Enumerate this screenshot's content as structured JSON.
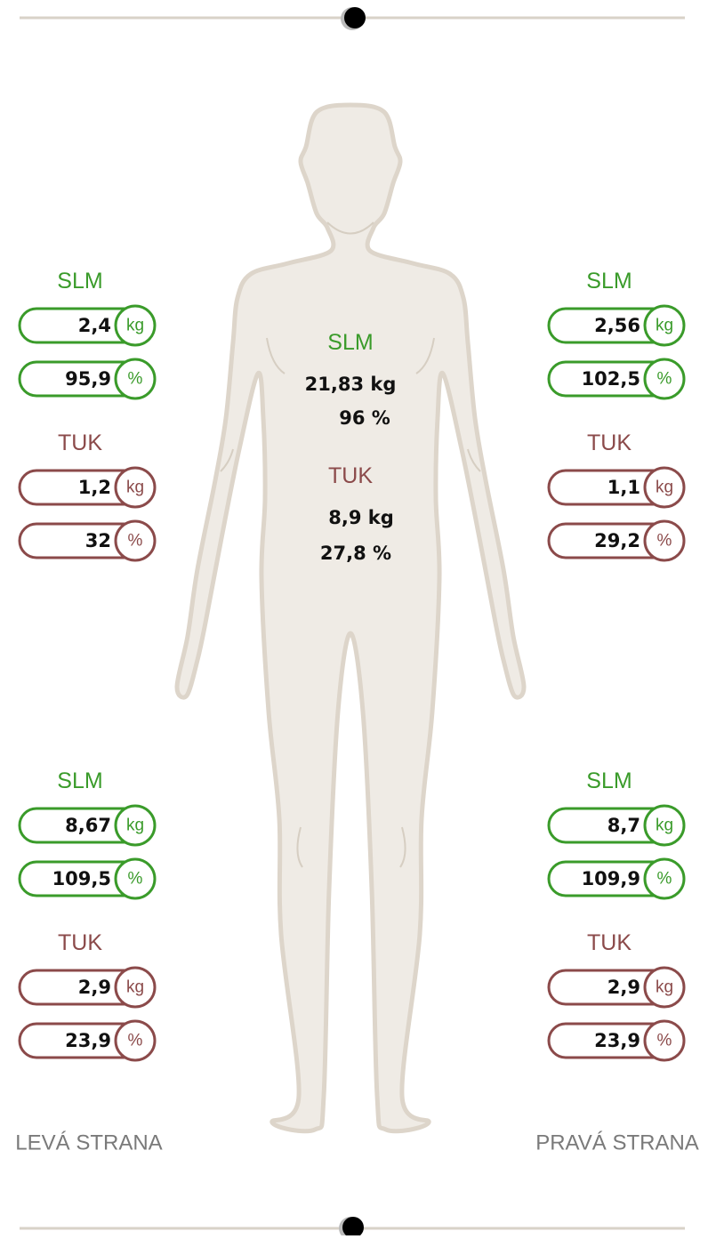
{
  "left_arm": {
    "slm": {
      "label": "SLM",
      "kg": "2,4",
      "kg_unit": "kg",
      "pct": "95,9",
      "pct_unit": "%"
    },
    "tuk": {
      "label": "TUK",
      "kg": "1,2",
      "kg_unit": "kg",
      "pct": "32",
      "pct_unit": "%"
    }
  },
  "right_arm": {
    "slm": {
      "label": "SLM",
      "kg": "2,56",
      "kg_unit": "kg",
      "pct": "102,5",
      "pct_unit": "%"
    },
    "tuk": {
      "label": "TUK",
      "kg": "1,1",
      "kg_unit": "kg",
      "pct": "29,2",
      "pct_unit": "%"
    }
  },
  "trunk": {
    "slm": {
      "label": "SLM",
      "kg": "21,83 kg",
      "pct": "96 %"
    },
    "tuk": {
      "label": "TUK",
      "kg": "8,9 kg",
      "pct": "27,8 %"
    }
  },
  "left_leg": {
    "slm": {
      "label": "SLM",
      "kg": "8,67",
      "kg_unit": "kg",
      "pct": "109,5",
      "pct_unit": "%"
    },
    "tuk": {
      "label": "TUK",
      "kg": "2,9",
      "kg_unit": "kg",
      "pct": "23,9",
      "pct_unit": "%"
    }
  },
  "right_leg": {
    "slm": {
      "label": "SLM",
      "kg": "8,7",
      "kg_unit": "kg",
      "pct": "109,9",
      "pct_unit": "%"
    },
    "tuk": {
      "label": "TUK",
      "kg": "2,9",
      "kg_unit": "kg",
      "pct": "23,9",
      "pct_unit": "%"
    }
  },
  "left_side_label": "LEVÁ STRANA",
  "right_side_label": "PRAVÁ STRANA"
}
